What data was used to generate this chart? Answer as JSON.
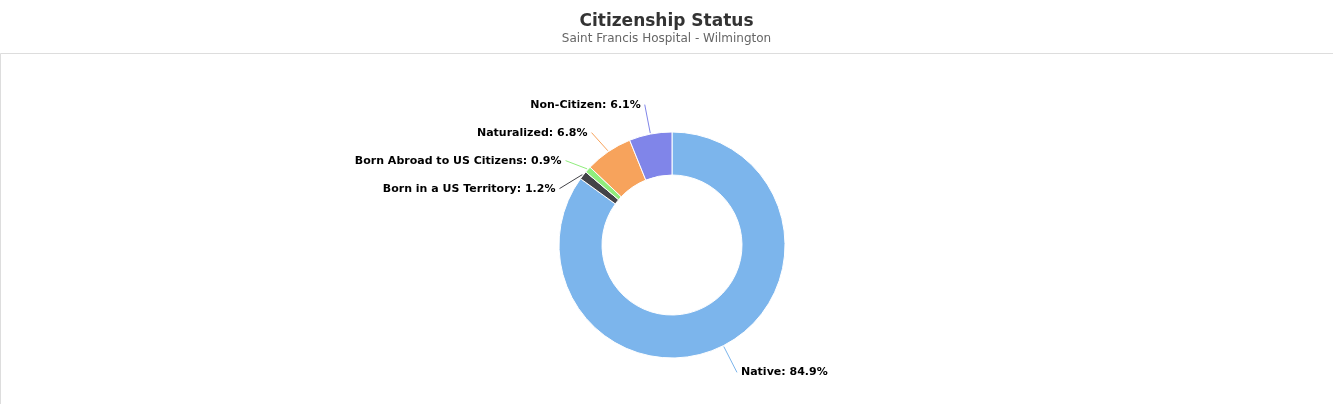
{
  "chart_data": {
    "type": "donut",
    "title": "Citizenship Status",
    "subtitle": "Saint Francis Hospital - Wilmington",
    "categories": [
      "Native",
      "Born in a US Territory",
      "Born Abroad to US Citizens",
      "Naturalized",
      "Non-Citizen"
    ],
    "values": [
      84.9,
      1.2,
      0.9,
      6.8,
      6.1
    ],
    "colors": [
      "#7cb5ec",
      "#434348",
      "#90ed7d",
      "#f7a35c",
      "#8085e9"
    ],
    "value_labels": [
      "84.9%",
      "1.2%",
      "0.9%",
      "6.8%",
      "6.1%"
    ]
  }
}
